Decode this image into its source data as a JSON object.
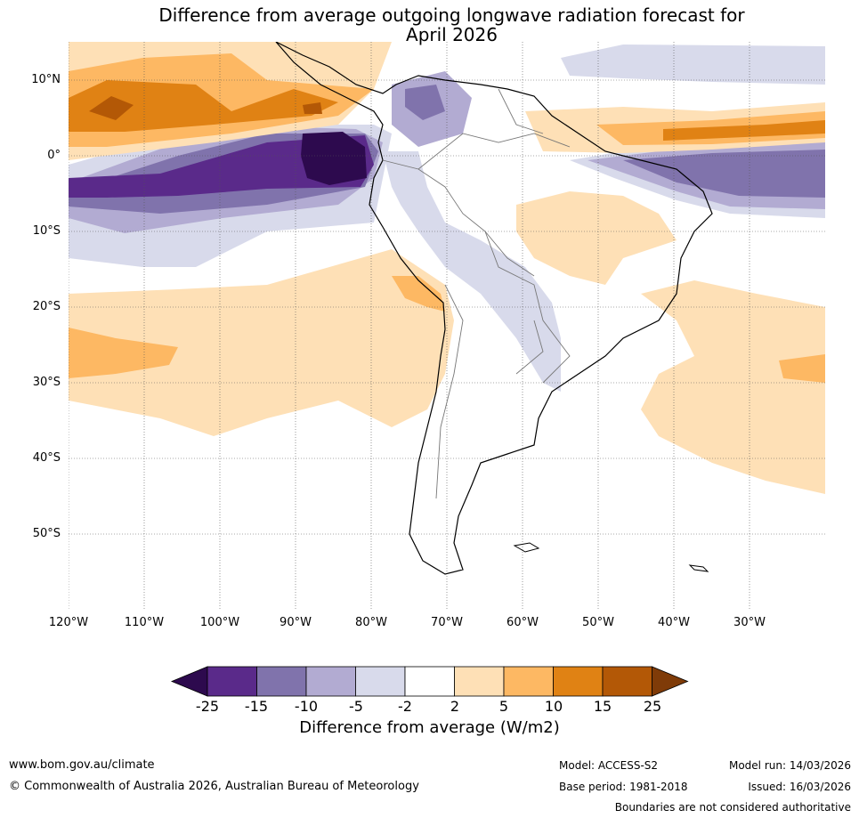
{
  "title": {
    "line1": "Difference from average outgoing longwave radiation forecast for",
    "line2": "April 2026"
  },
  "map": {
    "latitude_labels": [
      "10°N",
      "0°",
      "10°S",
      "20°S",
      "30°S",
      "40°S",
      "50°S"
    ],
    "longitude_labels": [
      "120°W",
      "110°W",
      "100°W",
      "90°W",
      "80°W",
      "70°W",
      "60°W",
      "50°W",
      "40°W",
      "30°W"
    ]
  },
  "legend": {
    "title": "Difference from average (W/m2)",
    "ticks": [
      "-25",
      "-15",
      "-10",
      "-5",
      "-2",
      "2",
      "5",
      "10",
      "15",
      "25"
    ],
    "colors": [
      "#2d0a4e",
      "#5a2a8a",
      "#8073ac",
      "#b2abd2",
      "#d8daeb",
      "#ffffff",
      "#fee0b6",
      "#fdb863",
      "#e08214",
      "#b35806",
      "#7f3b08"
    ]
  },
  "footer": {
    "website": "www.bom.gov.au/climate",
    "copyright": "© Commonwealth of Australia 2026, Australian Bureau of Meteorology",
    "model": "Model: ACCESS-S2",
    "base_period": "Base period: 1981-2018",
    "model_run": "Model run: 14/03/2026",
    "issued": "Issued: 16/03/2026",
    "disclaimer": "Boundaries are not considered authoritative"
  }
}
